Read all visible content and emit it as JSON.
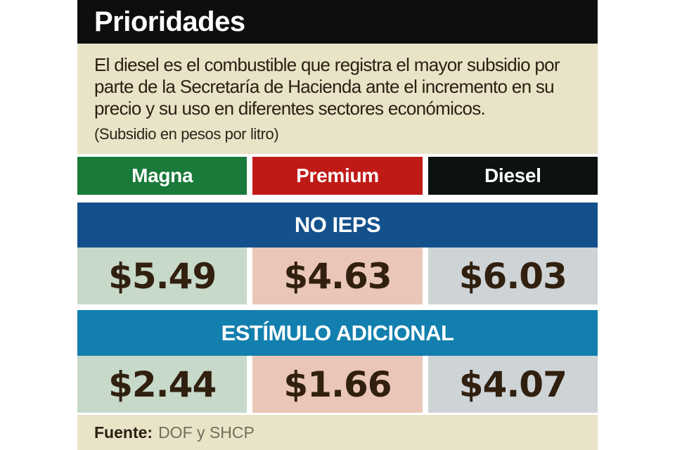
{
  "title": "Prioridades",
  "intro": {
    "lines": [
      "El diesel es el combustible que registra el mayor subsidio por",
      "parte de la Secretaría de Hacienda ante el incremento en su",
      "precio y su uso en diferentes sectores económicos."
    ],
    "note": "(Subsidio en pesos por litro)"
  },
  "columns": [
    {
      "label": "Magna",
      "color": "#1a7a3a",
      "cell_color": "#c7d9c9",
      "no_ieps": "$5.49",
      "estimulo": "$2.44"
    },
    {
      "label": "Premium",
      "color": "#c01a17",
      "cell_color": "#eac6b8",
      "no_ieps": "$4.63",
      "estimulo": "$1.66"
    },
    {
      "label": "Diesel",
      "color": "#0c120f",
      "cell_color": "#ced3d6",
      "no_ieps": "$6.03",
      "estimulo": "$4.07"
    }
  ],
  "sections": [
    {
      "label": "NO IEPS",
      "color": "#14518c"
    },
    {
      "label": "ESTÍMULO ADICIONAL",
      "color": "#127fae"
    }
  ],
  "footer": {
    "label": "Fuente:",
    "value": "DOF y SHCP"
  },
  "colors": {
    "title_bar": "#0c0f0d",
    "panel": "#e9e3c8",
    "value_text": "#31200f"
  },
  "chart_data": {
    "type": "table",
    "title": "Prioridades",
    "subtitle": "El diesel es el combustible que registra el mayor subsidio por parte de la Secretaría de Hacienda ante el incremento en su precio y su uso en diferentes sectores económicos.",
    "unit_note": "(Subsidio en pesos por litro)",
    "categories": [
      "Magna",
      "Premium",
      "Diesel"
    ],
    "series": [
      {
        "name": "NO IEPS",
        "values": [
          5.49,
          4.63,
          6.03
        ]
      },
      {
        "name": "ESTÍMULO ADICIONAL",
        "values": [
          2.44,
          1.66,
          4.07
        ]
      }
    ],
    "source": "DOF y SHCP"
  }
}
